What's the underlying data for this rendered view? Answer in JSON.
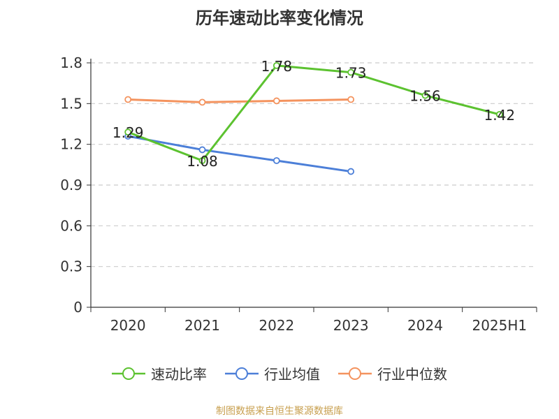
{
  "chart_data": {
    "type": "line",
    "title": "历年速动比率变化情况",
    "categories": [
      "2020",
      "2021",
      "2022",
      "2023",
      "2024",
      "2025H1"
    ],
    "y_ticks": [
      "0",
      "0.3",
      "0.6",
      "0.9",
      "1.2",
      "1.5",
      "1.8"
    ],
    "ylim": [
      0,
      1.8
    ],
    "grid": "horizontal dashed",
    "legend_position": "bottom",
    "series": [
      {
        "name": "速动比率",
        "color": "#5cc230",
        "values": [
          1.29,
          1.08,
          1.78,
          1.73,
          1.56,
          1.42
        ],
        "labels": [
          "1.29",
          "1.08",
          "1.78",
          "1.73",
          "1.56",
          "1.42"
        ]
      },
      {
        "name": "行业均值",
        "color": "#4c7fd8",
        "values": [
          1.26,
          1.16,
          1.08,
          1.0,
          null,
          null
        ]
      },
      {
        "name": "行业中位数",
        "color": "#f4935e",
        "values": [
          1.53,
          1.51,
          1.52,
          1.53,
          null,
          null
        ]
      }
    ]
  },
  "source": {
    "text": "制图数据来自恒生聚源数据库",
    "color": "#c8a050"
  }
}
